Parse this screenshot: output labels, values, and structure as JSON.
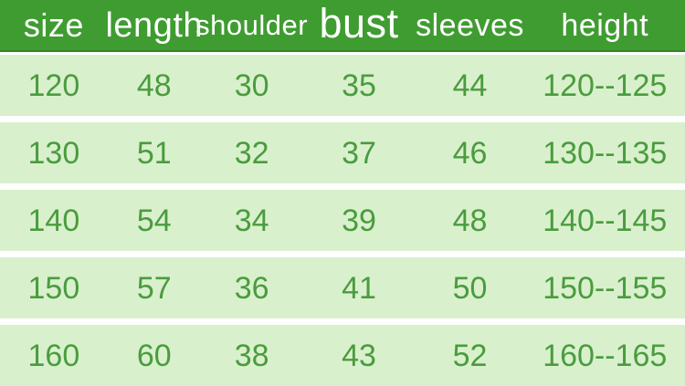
{
  "table": {
    "title": "clothing-size-chart",
    "columns": [
      {
        "key": "size",
        "label": "size"
      },
      {
        "key": "length",
        "label": "length"
      },
      {
        "key": "shoulder",
        "label": "shoulder"
      },
      {
        "key": "bust",
        "label": "bust"
      },
      {
        "key": "sleeves",
        "label": "sleeves"
      },
      {
        "key": "height",
        "label": "height"
      }
    ],
    "rows": [
      [
        "120",
        "48",
        "30",
        "35",
        "44",
        "120--125"
      ],
      [
        "130",
        "51",
        "32",
        "37",
        "46",
        "130--135"
      ],
      [
        "140",
        "54",
        "34",
        "39",
        "48",
        "140--145"
      ],
      [
        "150",
        "57",
        "36",
        "41",
        "50",
        "150--155"
      ],
      [
        "160",
        "60",
        "38",
        "43",
        "52",
        "160--165"
      ]
    ]
  },
  "colors": {
    "header_bg": "#3f9c31",
    "header_text": "#ffffff",
    "row_bg": "#d9f0cd",
    "cell_text": "#4a9c3e",
    "separator": "#ffffff"
  }
}
